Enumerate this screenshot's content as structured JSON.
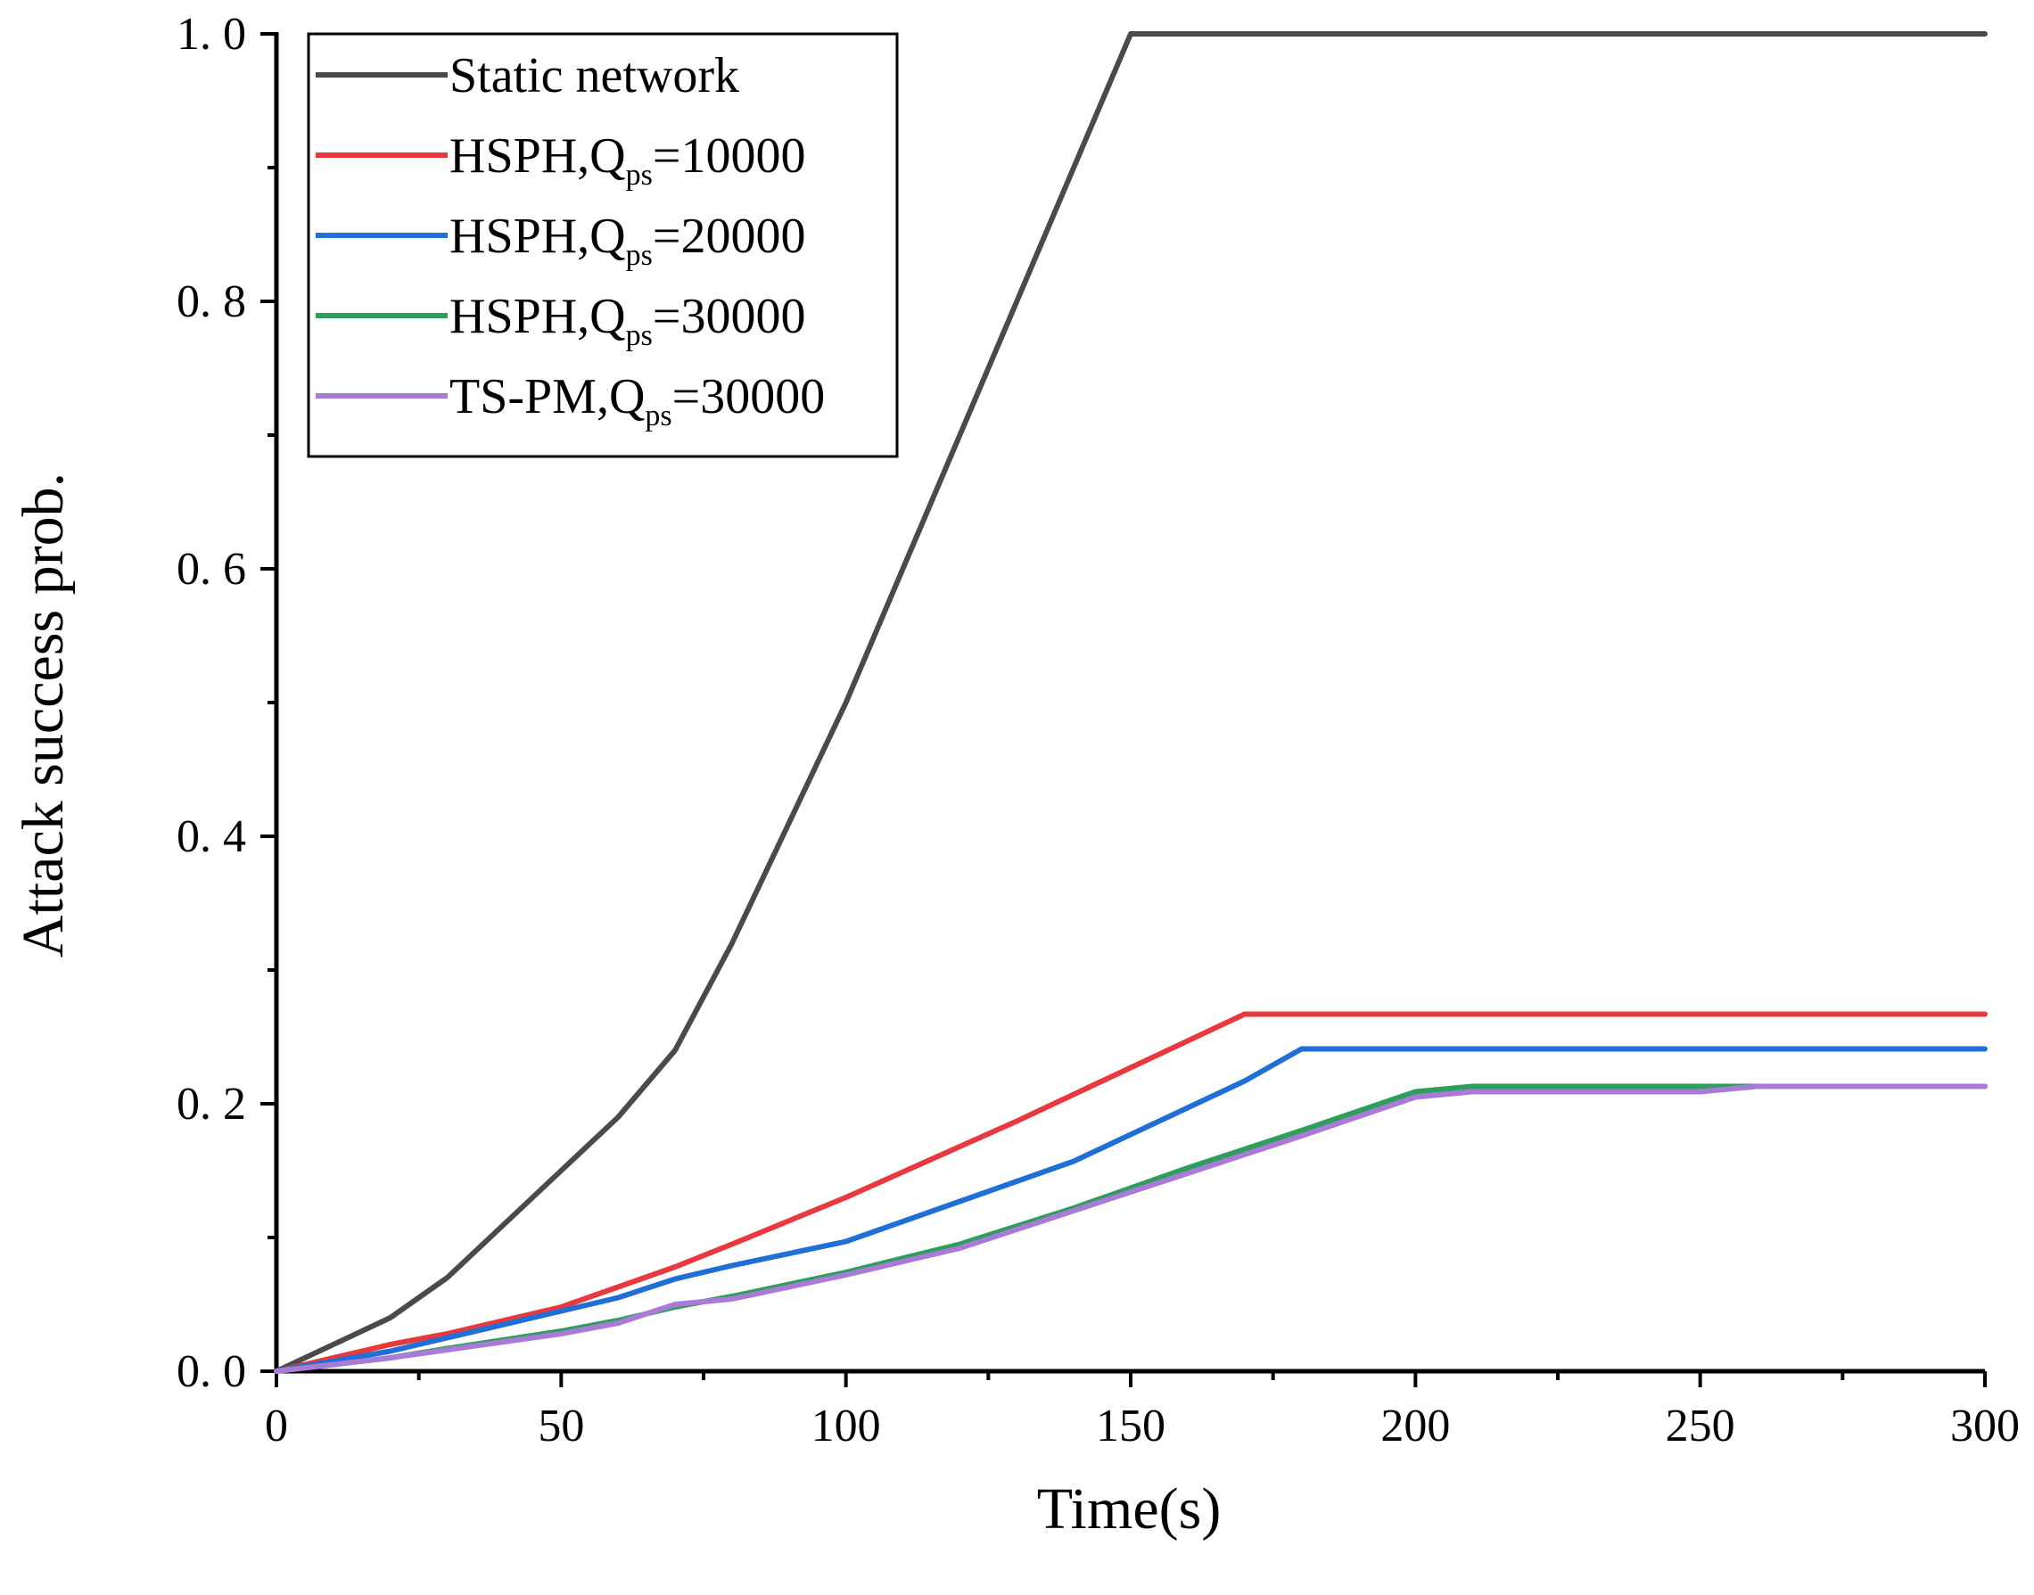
{
  "chart_data": {
    "type": "line",
    "title": "",
    "xlabel": "Time(s)",
    "ylabel": "Attack success prob.",
    "xlim": [
      0,
      300
    ],
    "ylim": [
      0,
      1.0
    ],
    "x_ticks": [
      0,
      50,
      100,
      150,
      200,
      250,
      300
    ],
    "x_tick_labels": [
      "0",
      "50",
      "100",
      "150",
      "200",
      "250",
      "300"
    ],
    "y_ticks": [
      0,
      0.2,
      0.4,
      0.6,
      0.8,
      1.0
    ],
    "y_tick_labels": [
      "0. 0",
      "0. 2",
      "0. 4",
      "0. 6",
      "0. 8",
      "1. 0"
    ],
    "grid": false,
    "legend_position": "top-left",
    "series": [
      {
        "name": "Static network",
        "legend_main": "Static network",
        "legend_sub": "",
        "legend_tail": "",
        "color": "#4a4a4a",
        "points": [
          [
            0,
            0
          ],
          [
            20,
            0.04
          ],
          [
            30,
            0.07
          ],
          [
            40,
            0.11
          ],
          [
            50,
            0.15
          ],
          [
            60,
            0.19
          ],
          [
            70,
            0.24
          ],
          [
            80,
            0.32
          ],
          [
            90,
            0.41
          ],
          [
            100,
            0.5
          ],
          [
            110,
            0.6
          ],
          [
            120,
            0.7
          ],
          [
            130,
            0.8
          ],
          [
            140,
            0.9
          ],
          [
            150,
            1.0
          ],
          [
            300,
            1.0
          ]
        ]
      },
      {
        "name": "HSPH,Qps=10000",
        "legend_main": "HSPH,Q",
        "legend_sub": "ps",
        "legend_tail": "=10000",
        "color": "#e8393e",
        "points": [
          [
            0,
            0
          ],
          [
            20,
            0.02
          ],
          [
            30,
            0.028
          ],
          [
            50,
            0.048
          ],
          [
            60,
            0.063
          ],
          [
            70,
            0.078
          ],
          [
            80,
            0.095
          ],
          [
            100,
            0.13
          ],
          [
            120,
            0.168
          ],
          [
            130,
            0.187
          ],
          [
            140,
            0.207
          ],
          [
            150,
            0.227
          ],
          [
            170,
            0.267
          ],
          [
            300,
            0.267
          ]
        ]
      },
      {
        "name": "HSPH,Qps=20000",
        "legend_main": "HSPH,Q",
        "legend_sub": "ps",
        "legend_tail": "=20000",
        "color": "#1f6fd6",
        "points": [
          [
            0,
            0
          ],
          [
            20,
            0.015
          ],
          [
            30,
            0.025
          ],
          [
            50,
            0.045
          ],
          [
            60,
            0.055
          ],
          [
            70,
            0.069
          ],
          [
            80,
            0.079
          ],
          [
            100,
            0.097
          ],
          [
            120,
            0.127
          ],
          [
            140,
            0.157
          ],
          [
            160,
            0.197
          ],
          [
            170,
            0.217
          ],
          [
            180,
            0.241
          ],
          [
            300,
            0.241
          ]
        ]
      },
      {
        "name": "HSPH,Qps=30000",
        "legend_main": "HSPH,Q",
        "legend_sub": "ps",
        "legend_tail": "=30000",
        "color": "#2e9e5b",
        "points": [
          [
            0,
            0
          ],
          [
            20,
            0.01
          ],
          [
            30,
            0.017
          ],
          [
            50,
            0.03
          ],
          [
            60,
            0.038
          ],
          [
            70,
            0.048
          ],
          [
            80,
            0.056
          ],
          [
            100,
            0.074
          ],
          [
            120,
            0.095
          ],
          [
            140,
            0.122
          ],
          [
            160,
            0.152
          ],
          [
            180,
            0.18
          ],
          [
            200,
            0.209
          ],
          [
            210,
            0.213
          ],
          [
            300,
            0.213
          ]
        ]
      },
      {
        "name": "TS-PM,Qps=30000",
        "legend_main": "TS-PM,Q",
        "legend_sub": "ps",
        "legend_tail": "=30000",
        "color": "#a97ad8",
        "points": [
          [
            0,
            0
          ],
          [
            20,
            0.01
          ],
          [
            30,
            0.016
          ],
          [
            50,
            0.028
          ],
          [
            60,
            0.036
          ],
          [
            70,
            0.05
          ],
          [
            80,
            0.054
          ],
          [
            100,
            0.072
          ],
          [
            120,
            0.092
          ],
          [
            140,
            0.12
          ],
          [
            160,
            0.148
          ],
          [
            180,
            0.176
          ],
          [
            200,
            0.205
          ],
          [
            210,
            0.209
          ],
          [
            250,
            0.209
          ],
          [
            260,
            0.213
          ],
          [
            300,
            0.213
          ]
        ]
      }
    ]
  }
}
